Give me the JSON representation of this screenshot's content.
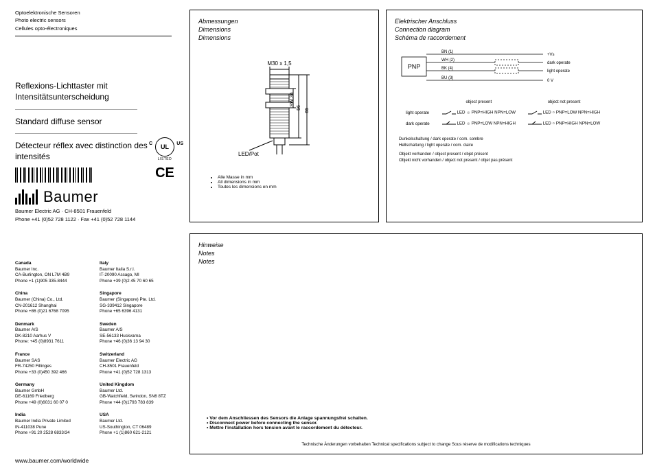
{
  "left": {
    "header_lines": [
      "Optoelektronische Sensoren",
      "Photo electric sensors",
      "Cellules opto-électroniques"
    ],
    "titles": [
      "Reflexions-Lichttaster mit Intensitätsunterscheidung",
      "Standard diffuse sensor",
      "Détecteur réflex avec distinction des intensités"
    ],
    "logo_text": "Baumer",
    "company": "Baumer Electric AG · CH-8501 Frauenfeld",
    "phone": "Phone +41 (0)52 728 1122 · Fax +41 (0)52 728 1144",
    "mark_ul": "UL",
    "mark_listed": "LISTED",
    "mark_ce": "CE",
    "url": "www.baumer.com/worldwide"
  },
  "offices_left": [
    {
      "c": "Canada",
      "l": [
        "Baumer Inc.",
        "CA-Burlington, ON L7M 4B9",
        "Phone +1 (1)905 335-8444"
      ]
    },
    {
      "c": "China",
      "l": [
        "Baumer (China) Co., Ltd.",
        "CN-201612 Shanghai",
        "Phone +86 (0)21 6768 7095"
      ]
    },
    {
      "c": "Denmark",
      "l": [
        "Baumer A/S",
        "DK-8210 Aarhus V",
        "Phone: +45 (0)8931 7611"
      ]
    },
    {
      "c": "France",
      "l": [
        "Baumer SAS",
        "FR-74250 Fillinges",
        "Phone +33 (0)450 392 466"
      ]
    },
    {
      "c": "Germany",
      "l": [
        "Baumer GmbH",
        "DE-61169 Friedberg",
        "Phone +49 (0)6031 60 07 0"
      ]
    },
    {
      "c": "India",
      "l": [
        "Baumer India Private Limited",
        "IN-411038 Pune",
        "Phone +91 20 2528 6833/34"
      ]
    }
  ],
  "offices_right": [
    {
      "c": "Italy",
      "l": [
        "Baumer Italia S.r.l.",
        "IT-20090 Assago, MI",
        "Phone +39 (0)2 45 70 60 65"
      ]
    },
    {
      "c": "Singapore",
      "l": [
        "Baumer (Singapore) Pte. Ltd.",
        "SG-339412 Singapore",
        "Phone +65 6396 4131"
      ]
    },
    {
      "c": "Sweden",
      "l": [
        "Baumer A/S",
        "SE-56133 Huskvarna",
        "Phone +46 (0)36 13 94 30"
      ]
    },
    {
      "c": "Switzerland",
      "l": [
        "Baumer Electric AG",
        "CH-8501 Frauenfeld",
        "Phone +41 (0)52 728 1313"
      ]
    },
    {
      "c": "United Kingdom",
      "l": [
        "Baumer Ltd.",
        "GB-Watchfield, Swindon, SN6 8TZ",
        "Phone +44 (0)1793 783 839"
      ]
    },
    {
      "c": "USA",
      "l": [
        "Baumer Ltd.",
        "US-Southington, CT 06489",
        "Phone +1 (1)860 621-2121"
      ]
    }
  ],
  "dim": {
    "title": [
      "Abmessungen",
      "Dimensions",
      "Dimensions"
    ],
    "thread": "M30 x 1,5",
    "sw": "SW 36",
    "h56": "56",
    "h65": "65",
    "ledpot": "LED/Pot",
    "bullets": [
      "Alle Masse in mm",
      "All dimensions in mm",
      "Toutes les dimensions en mm"
    ]
  },
  "conn": {
    "title": [
      "Elektrischer Anschluss",
      "Connection diagram",
      "Schéma de raccordement"
    ],
    "box_label": "PNP",
    "wires": {
      "bn": "BN (1)",
      "bn_sig": "+Vs",
      "wh": "WH (2)",
      "wh_sig": "dark operate",
      "bk": "BK (4)",
      "bk_sig": "light operate",
      "bu": "BU (3)",
      "bu_sig": "0 V"
    },
    "hdr_present": "object present",
    "hdr_notpresent": "object not present",
    "rows": [
      {
        "label": "light operate",
        "a": "LED ☼ PNP=HIGH NPN=LOW",
        "b": "LED ○ PNP=LOW NPN=HIGH"
      },
      {
        "label": "dark operate",
        "a": "LED ☼ PNP=LOW NPN=HIGH",
        "b": "LED ○ PNP=HIGH NPN=LOW"
      }
    ],
    "notes": [
      "Dunkelschaltung / dark operate / com. sombre",
      "Hellschaltung / light operate / com. claire",
      "Objekt vorhanden / object present / objet présent",
      "Objekt nicht vorhanden / object not present / objet pas présent"
    ]
  },
  "notes": {
    "title": [
      "Hinweise",
      "Notes",
      "Notes"
    ],
    "warn": [
      "Vor dem Anschliessen des Sensors die Anlage spannungsfrei schalten.",
      "Disconnect power before connecting the sensor.",
      "Mettre l'installation hors tension avant le raccordement du détecteur."
    ],
    "foot": "Technische Änderungen vorbehalten  Technical specifications subject to change  Sous réserve de modifications techniques"
  },
  "colors": {
    "line": "#000000",
    "lightgrey": "#e8e8e8",
    "grey": "#cccccc"
  }
}
